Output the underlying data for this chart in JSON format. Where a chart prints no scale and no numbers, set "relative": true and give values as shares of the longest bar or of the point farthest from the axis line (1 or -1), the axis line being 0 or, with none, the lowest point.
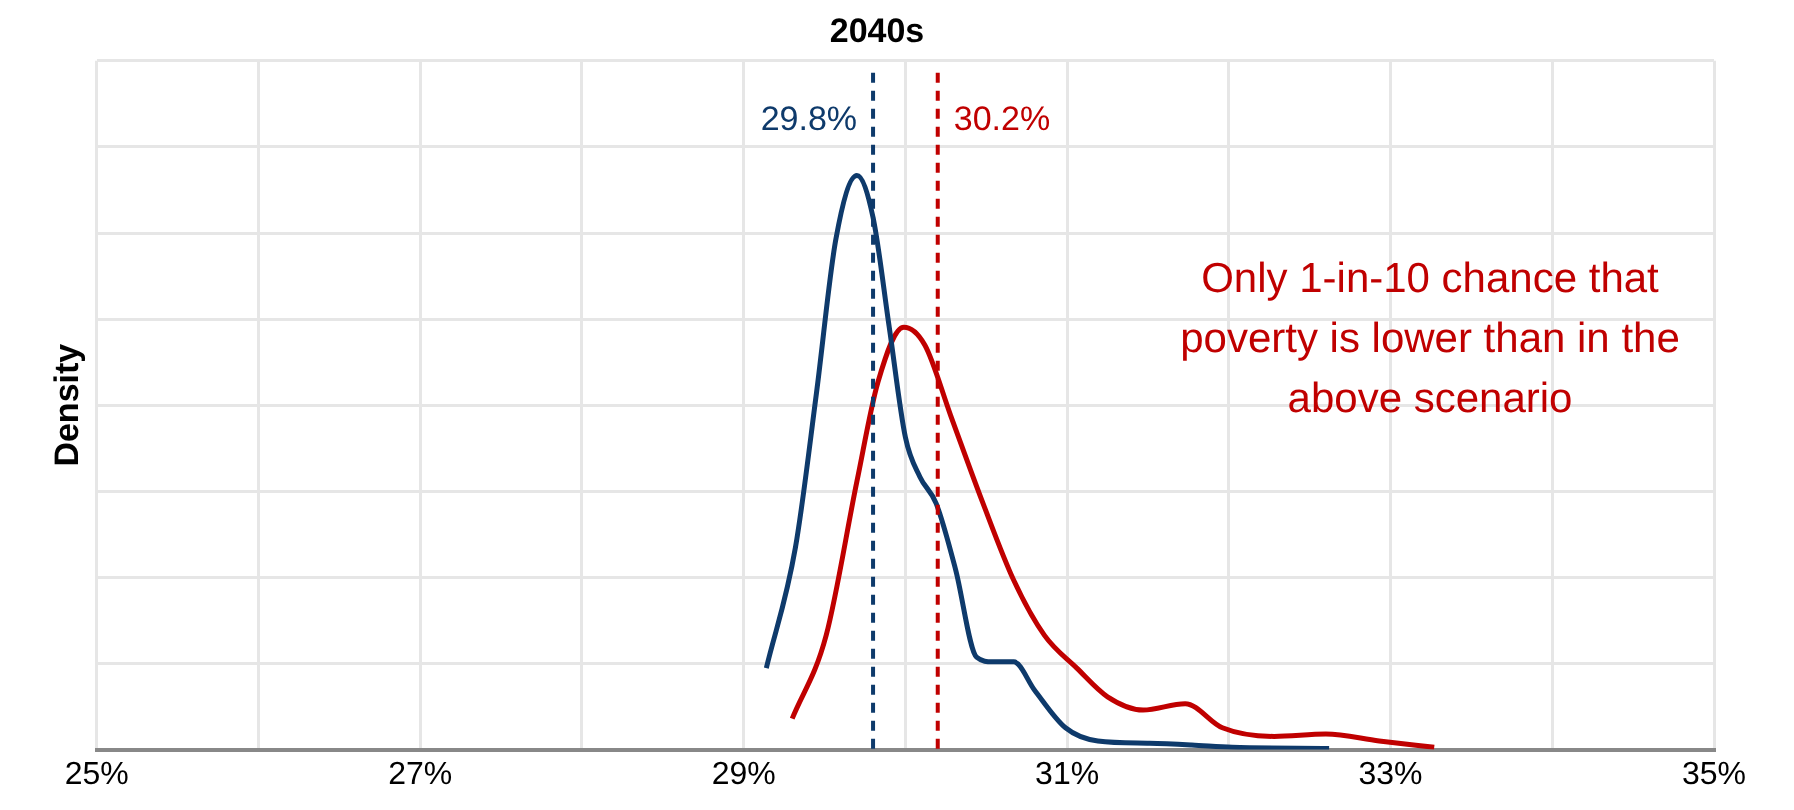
{
  "chart_data": {
    "type": "line",
    "title": "2040s",
    "ylabel": "Density",
    "relative": true,
    "grid": true,
    "legend": false,
    "marker": "none",
    "line_style": "solid",
    "xlim": [
      25,
      35
    ],
    "xticks": [
      {
        "value": 25,
        "label": "25%"
      },
      {
        "value": 26,
        "label": null
      },
      {
        "value": 27,
        "label": "27%"
      },
      {
        "value": 28,
        "label": null
      },
      {
        "value": 29,
        "label": "29%"
      },
      {
        "value": 30,
        "label": null
      },
      {
        "value": 31,
        "label": "31%"
      },
      {
        "value": 32,
        "label": null
      },
      {
        "value": 33,
        "label": "33%"
      },
      {
        "value": 34,
        "label": null
      },
      {
        "value": 35,
        "label": "35%"
      }
    ],
    "series": [
      {
        "color": "#0e3a6b",
        "x": [
          29.14,
          29.32,
          29.45,
          29.57,
          29.7,
          29.8,
          29.9,
          30.0,
          30.09,
          30.19,
          30.31,
          30.44,
          30.54,
          30.67,
          30.8,
          30.99,
          31.19,
          31.51,
          31.77,
          32.02,
          32.62
        ],
        "values": [
          0.142,
          0.352,
          0.621,
          0.889,
          1,
          0.927,
          0.736,
          0.544,
          0.475,
          0.429,
          0.314,
          0.161,
          0.153,
          0.153,
          0.103,
          0.038,
          0.015,
          0.011,
          0.008,
          0.004,
          0.002
        ]
      },
      {
        "color": "#c00000",
        "x": [
          29.3,
          29.51,
          29.7,
          29.83,
          29.99,
          30.12,
          30.28,
          30.48,
          30.67,
          30.86,
          31.06,
          31.25,
          31.47,
          31.73,
          31.96,
          32.28,
          32.6,
          32.93,
          33.27
        ],
        "values": [
          0.054,
          0.199,
          0.467,
          0.64,
          0.736,
          0.705,
          0.582,
          0.429,
          0.295,
          0.199,
          0.142,
          0.092,
          0.069,
          0.08,
          0.038,
          0.023,
          0.027,
          0.015,
          0.004
        ]
      }
    ],
    "ref_lines": [
      {
        "axis": "x",
        "value": 29.8,
        "label": "29.8%",
        "color": "#0e3a6b",
        "line_style": "dashed"
      },
      {
        "axis": "x",
        "value": 30.2,
        "label": "30.2%",
        "color": "#c00000",
        "line_style": "dashed"
      }
    ],
    "annotations": [
      "Only 1-in-10 chance that poverty is lower than in the above scenario"
    ]
  }
}
